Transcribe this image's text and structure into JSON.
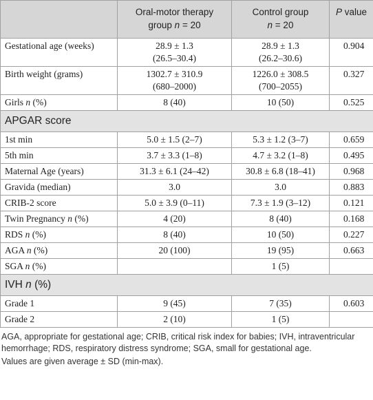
{
  "table": {
    "header": [
      null,
      {
        "lines": [
          "Oral-motor therapy",
          [
            "group ",
            {
              "text": "n",
              "italic": true
            },
            " = 20"
          ]
        ]
      },
      {
        "lines": [
          "Control group",
          [
            {
              "text": "n",
              "italic": true
            },
            " = 20"
          ]
        ]
      },
      [
        {
          "text": "P",
          "italic": true
        },
        " value"
      ]
    ],
    "rows": [
      {
        "cells": [
          "Gestational age (weeks)",
          {
            "lines": [
              "28.9 ± 1.3",
              "(26.5–30.4)"
            ]
          },
          {
            "lines": [
              "28.9 ± 1.3",
              "(26.2–30.6)"
            ]
          },
          "0.904"
        ]
      },
      {
        "cells": [
          "Birth weight (grams)",
          {
            "lines": [
              "1302.7 ± 310.9",
              "(680–2000)"
            ]
          },
          {
            "lines": [
              "1226.0 ± 308.5",
              "(700–2055)"
            ]
          },
          "0.327"
        ]
      },
      {
        "cells": [
          [
            "Girls ",
            {
              "text": "n",
              "italic": true
            },
            " (%)"
          ],
          "8 (40)",
          "10 (50)",
          "0.525"
        ]
      },
      {
        "section": "APGAR score"
      },
      {
        "cells": [
          "1st min",
          "5.0 ± 1.5 (2–7)",
          "5.3 ± 1.2 (3–7)",
          "0.659"
        ]
      },
      {
        "cells": [
          "5th min",
          "3.7 ± 3.3 (1–8)",
          "4.7 ± 3.2 (1–8)",
          "0.495"
        ]
      },
      {
        "cells": [
          "Maternal Age (years)",
          "31.3 ± 6.1 (24–42)",
          "30.8 ± 6.8 (18–41)",
          "0.968"
        ]
      },
      {
        "cells": [
          "Gravida (median)",
          "3.0",
          "3.0",
          "0.883"
        ]
      },
      {
        "cells": [
          "CRIB-2 score",
          "5.0 ± 3.9 (0–11)",
          "7.3 ± 1.9 (3–12)",
          "0.121"
        ]
      },
      {
        "cells": [
          [
            "Twin Pregnancy ",
            {
              "text": "n",
              "italic": true
            },
            " (%)"
          ],
          "4 (20)",
          "8 (40)",
          "0.168"
        ]
      },
      {
        "cells": [
          [
            "RDS ",
            {
              "text": "n",
              "italic": true
            },
            " (%)"
          ],
          "8 (40)",
          "10 (50)",
          "0.227"
        ]
      },
      {
        "cells": [
          [
            "AGA ",
            {
              "text": "n",
              "italic": true
            },
            " (%)"
          ],
          "20 (100)",
          "19 (95)",
          "0.663"
        ]
      },
      {
        "cells": [
          [
            "SGA ",
            {
              "text": "n",
              "italic": true
            },
            " (%)"
          ],
          null,
          "1 (5)",
          null
        ]
      },
      {
        "section": [
          "IVH ",
          {
            "text": "n",
            "italic": true
          },
          " (%)"
        ]
      },
      {
        "cells": [
          "Grade 1",
          "9 (45)",
          "7 (35)",
          "0.603"
        ]
      },
      {
        "cells": [
          "Grade 2",
          "2 (10)",
          "1 (5)",
          null
        ]
      }
    ]
  },
  "notes": [
    "AGA, appropriate for gestational age; CRIB, critical risk index for babies; IVH, intraventricular hemorrhage; RDS, respiratory distress syndrome; SGA, small for gestational age.",
    "Values are given average ± SD (min-max)."
  ]
}
